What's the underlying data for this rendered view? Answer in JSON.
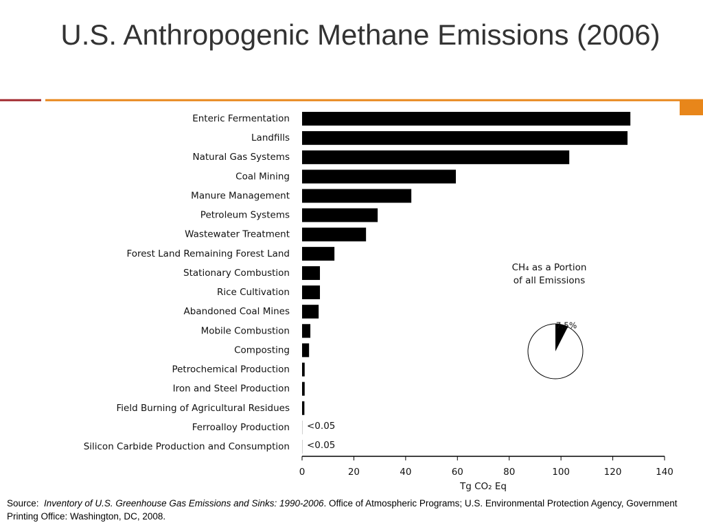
{
  "title": "U.S. Anthropogenic Methane Emissions (2006)",
  "chart_data": {
    "type": "hbar",
    "categories": [
      "Enteric Fermentation",
      "Landfills",
      "Natural Gas Systems",
      "Coal Mining",
      "Manure Management",
      "Petroleum Systems",
      "Wastewater Treatment",
      "Forest Land Remaining Forest Land",
      "Stationary Combustion",
      "Rice Cultivation",
      "Abandoned Coal Mines",
      "Mobile Combustion",
      "Composting",
      "Petrochemical Production",
      "Iron and Steel Production",
      "Field Burning of Agricultural Residues",
      "Ferroalloy Production",
      "Silicon Carbide Production and Consumption"
    ],
    "values": [
      126.8,
      125.7,
      103.2,
      59.4,
      42.2,
      29.2,
      24.7,
      12.5,
      6.9,
      6.9,
      6.4,
      3.2,
      2.7,
      1.0,
      1.0,
      0.9,
      0.05,
      0.05
    ],
    "value_labels": [
      null,
      null,
      null,
      null,
      null,
      null,
      null,
      null,
      null,
      null,
      null,
      null,
      null,
      null,
      null,
      null,
      "<0.05",
      "<0.05"
    ],
    "color": "#000000",
    "xlim": [
      0,
      140
    ],
    "xticks": [
      0,
      20,
      40,
      60,
      80,
      100,
      120,
      140
    ],
    "xlabel": "Tg CO₂ Eq",
    "inset": {
      "type": "pie",
      "title": [
        "CH₄ as a Portion",
        "of all Emissions"
      ],
      "values": [
        7.5
      ],
      "value_labels": [
        "7.5%"
      ],
      "color": "#000000"
    }
  },
  "source": {
    "prefix": "Source:",
    "title": "Inventory of U.S. Greenhouse Gas Emissions and Sinks:  1990-2006",
    "rest": ". Office of Atmospheric Programs; U.S. Environmental Protection Agency, Government Printing Office: Washington, DC, 2008."
  }
}
